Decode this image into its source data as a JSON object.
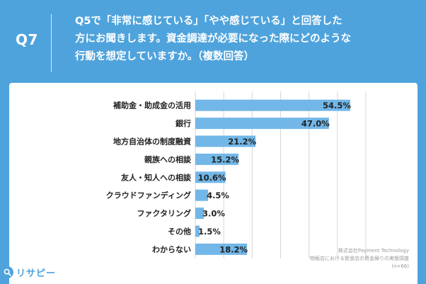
{
  "header": {
    "question_number": "Q7",
    "question_lines": [
      "Q5で「非常に感じている」「やや感じている」と回答した",
      "方にお聞きします。資金調達が必要になった際にどのような",
      "行動を想定していますか。（複数回答）"
    ]
  },
  "chart_data": {
    "type": "bar",
    "orientation": "horizontal",
    "categories": [
      "補助金・助成金の活用",
      "銀行",
      "地方自治体の制度融資",
      "親族への相談",
      "友人・知人への相談",
      "クラウドファンディング",
      "ファクタリング",
      "その他",
      "わからない"
    ],
    "values": [
      54.5,
      47.0,
      21.2,
      15.2,
      10.6,
      4.5,
      3.0,
      1.5,
      18.2
    ],
    "value_labels": [
      "54.5%",
      "47.0%",
      "21.2%",
      "15.2%",
      "10.6%",
      "4.5%",
      "3.0%",
      "1.5%",
      "18.2%"
    ],
    "unit": "%",
    "xlim": [
      0,
      60
    ],
    "gridlines": [
      0,
      10,
      20,
      30,
      40,
      50,
      60
    ],
    "colors": {
      "bar": "#72b7e8",
      "background": "#4fa3dc"
    }
  },
  "source": {
    "company": "株式会社Payment Technology",
    "survey": "物販店における飲食店の資金繰りの実態調査",
    "sample": "(n=66)"
  },
  "logo": {
    "text": "リサピー",
    "icon": "search-icon"
  }
}
